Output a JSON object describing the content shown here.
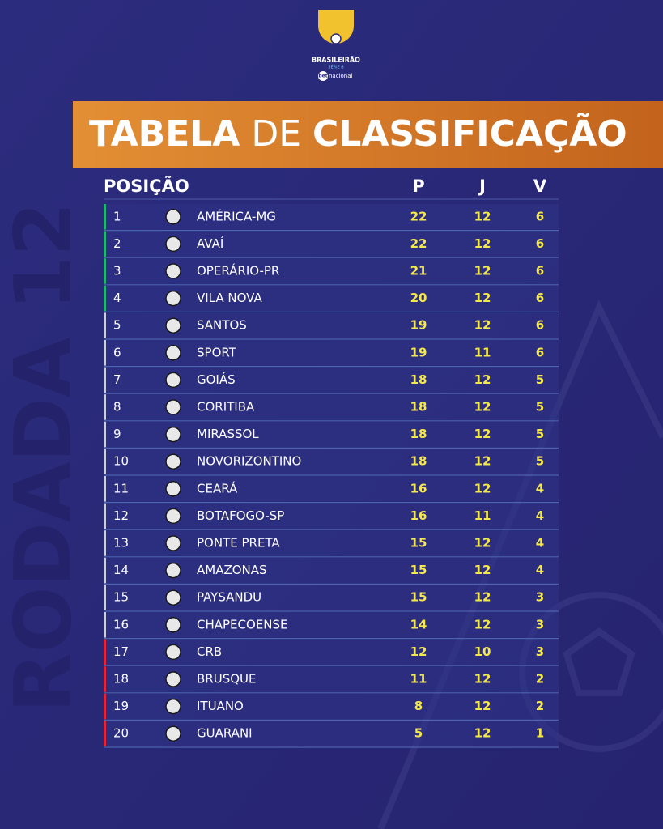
{
  "header": {
    "brand": "BRASILEIRÃO",
    "division": "SÉRIE B",
    "sponsor_a": "bet",
    "sponsor_b": "nacional"
  },
  "title": {
    "part1": "TABELA",
    "part2": "DE",
    "part3": "CLASSIFICAÇÃO"
  },
  "side_label": "RODADA 12",
  "table": {
    "columns": [
      "POSIÇÃO",
      "P",
      "J",
      "V"
    ],
    "zone_colors": [
      "#22b573",
      "#22b573",
      "#22b573",
      "#22b573",
      "#c9cde8",
      "#c9cde8",
      "#c9cde8",
      "#c9cde8",
      "#c9cde8",
      "#c9cde8",
      "#c9cde8",
      "#c9cde8",
      "#c9cde8",
      "#c9cde8",
      "#c9cde8",
      "#c9cde8",
      "#e0283a",
      "#e0283a",
      "#e0283a",
      "#e0283a"
    ],
    "rows": [
      [
        1,
        "AMÉRICA-MG",
        22,
        12,
        6
      ],
      [
        2,
        "AVAÍ",
        22,
        12,
        6
      ],
      [
        3,
        "OPERÁRIO-PR",
        21,
        12,
        6
      ],
      [
        4,
        "VILA NOVA",
        20,
        12,
        6
      ],
      [
        5,
        "SANTOS",
        19,
        12,
        6
      ],
      [
        6,
        "SPORT",
        19,
        11,
        6
      ],
      [
        7,
        "GOIÁS",
        18,
        12,
        5
      ],
      [
        8,
        "CORITIBA",
        18,
        12,
        5
      ],
      [
        9,
        "MIRASSOL",
        18,
        12,
        5
      ],
      [
        10,
        "NOVORIZONTINO",
        18,
        12,
        5
      ],
      [
        11,
        "CEARÁ",
        16,
        12,
        4
      ],
      [
        12,
        "BOTAFOGO-SP",
        16,
        11,
        4
      ],
      [
        13,
        "PONTE PRETA",
        15,
        12,
        4
      ],
      [
        14,
        "AMAZONAS",
        15,
        12,
        4
      ],
      [
        15,
        "PAYSANDU",
        15,
        12,
        3
      ],
      [
        16,
        "CHAPECOENSE",
        14,
        12,
        3
      ],
      [
        17,
        "CRB",
        12,
        10,
        3
      ],
      [
        18,
        "BRUSQUE",
        11,
        12,
        2
      ],
      [
        19,
        "ITUANO",
        8,
        12,
        2
      ],
      [
        20,
        "GUARANI",
        5,
        12,
        1
      ]
    ]
  }
}
